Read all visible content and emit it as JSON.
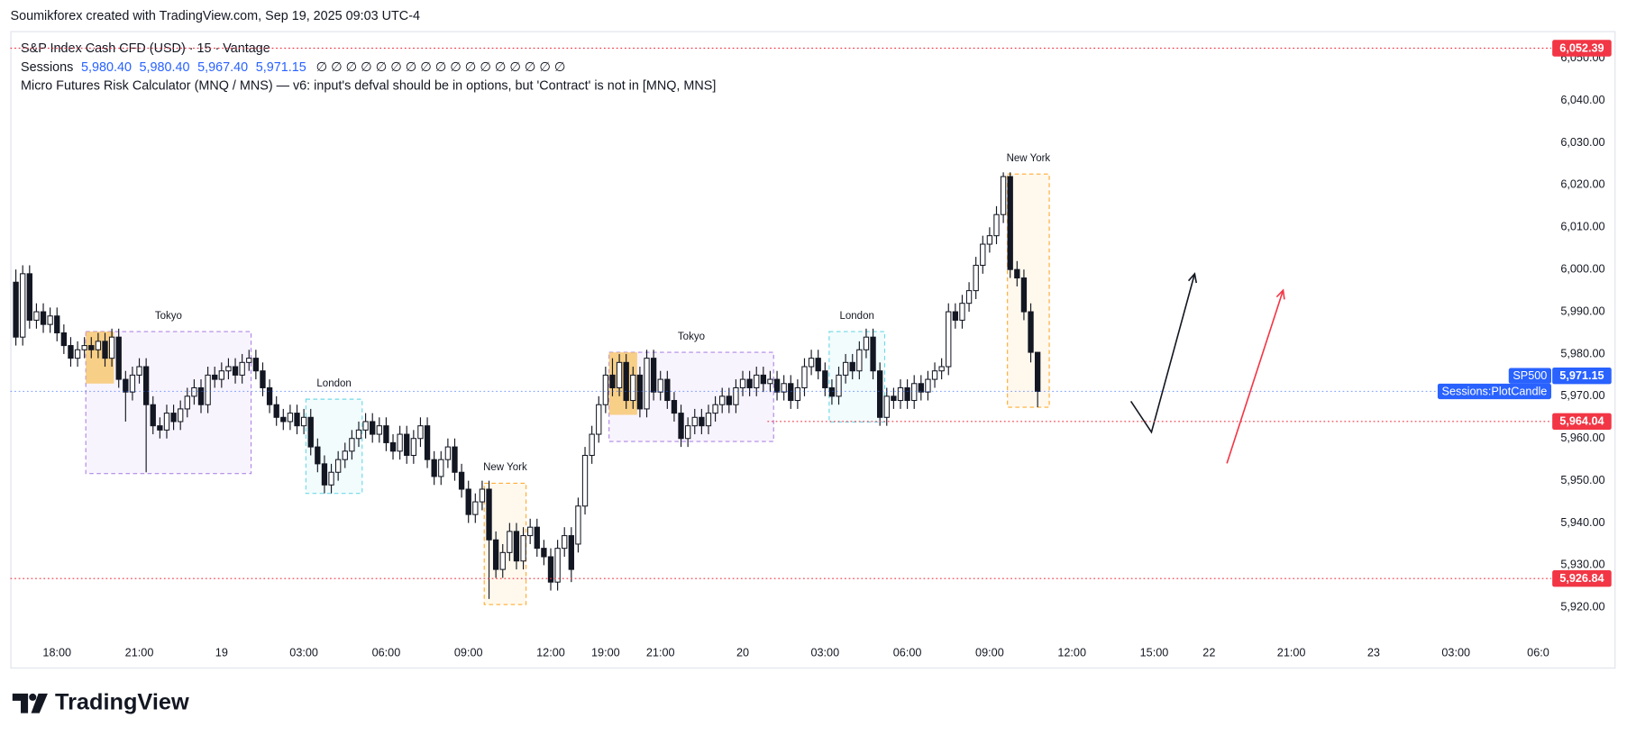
{
  "chart_data": {
    "type": "candlestick",
    "attribution": "Soumikforex created with TradingView.com, Sep 19, 2025 09:03 UTC-4",
    "title": "S&P Index Cash CFD (USD) · 15 · Vantage",
    "indicator": {
      "name": "Sessions",
      "values": [
        {
          "value": 5980.4,
          "label": "5,980.40"
        },
        {
          "value": 5980.4,
          "label": "5,980.40"
        },
        {
          "value": 5967.4,
          "label": "5,967.40"
        },
        {
          "value": 5971.15,
          "label": "5,971.15"
        }
      ],
      "color": "#2962ff",
      "symbols": "∅ ∅ ∅ ∅ ∅ ∅ ∅ ∅ ∅ ∅ ∅ ∅ ∅ ∅ ∅ ∅ ∅"
    },
    "error_message": "Micro Futures Risk Calculator (MNQ / MNS) — v6: input's defval should be in options, but 'Contract' is not in [MNQ, MNS]",
    "logo": "TradingView",
    "xlim": [
      -6.8,
      217.9
    ],
    "ylim": [
      5912.88,
      6056.44
    ],
    "grid": false,
    "xticks": [
      {
        "value": 0,
        "label": "18:00"
      },
      {
        "value": 12,
        "label": "21:00"
      },
      {
        "value": 24,
        "label": "19"
      },
      {
        "value": 36,
        "label": "03:00"
      },
      {
        "value": 48,
        "label": "06:00"
      },
      {
        "value": 60,
        "label": "09:00"
      },
      {
        "value": 72,
        "label": "12:00"
      },
      {
        "value": 80,
        "label": "19:00"
      },
      {
        "value": 88,
        "label": "21:00"
      },
      {
        "value": 100,
        "label": "20"
      },
      {
        "value": 112,
        "label": "03:00"
      },
      {
        "value": 124,
        "label": "06:00"
      },
      {
        "value": 136,
        "label": "09:00"
      },
      {
        "value": 148,
        "label": "12:00"
      },
      {
        "value": 160,
        "label": "15:00"
      },
      {
        "value": 168,
        "label": "22"
      },
      {
        "value": 180,
        "label": "21:00"
      },
      {
        "value": 192,
        "label": "23"
      },
      {
        "value": 204,
        "label": "03:00"
      },
      {
        "value": 216,
        "label": "06:0"
      }
    ],
    "yticks": [
      {
        "value": 5920,
        "label": "5,920.00"
      },
      {
        "value": 5930,
        "label": "5,930.00"
      },
      {
        "value": 5940,
        "label": "5,940.00"
      },
      {
        "value": 5950,
        "label": "5,950.00"
      },
      {
        "value": 5960,
        "label": "5,960.00"
      },
      {
        "value": 5970,
        "label": "5,970.00"
      },
      {
        "value": 5980,
        "label": "5,980.00"
      },
      {
        "value": 5990,
        "label": "5,990.00"
      },
      {
        "value": 6000,
        "label": "6,000.00"
      },
      {
        "value": 6010,
        "label": "6,010.00"
      },
      {
        "value": 6020,
        "label": "6,020.00"
      },
      {
        "value": 6030,
        "label": "6,030.00"
      },
      {
        "value": 6040,
        "label": "6,040.00"
      },
      {
        "value": 6050,
        "label": "6,050.00"
      }
    ],
    "up_color": "#ffffff",
    "down_color": "#131722",
    "wick_color": "#131722",
    "x": [
      -6,
      -5,
      -4,
      -3,
      -2,
      -1,
      0,
      1,
      2,
      3,
      4,
      5,
      6,
      7,
      8,
      9,
      10,
      11,
      12,
      13,
      14,
      15,
      16,
      17,
      18,
      19,
      20,
      21,
      22,
      23,
      24,
      25,
      26,
      27,
      28,
      29,
      30,
      31,
      32,
      33,
      34,
      35,
      36,
      37,
      38,
      39,
      40,
      41,
      42,
      43,
      44,
      45,
      46,
      47,
      48,
      49,
      50,
      51,
      52,
      53,
      54,
      55,
      56,
      57,
      58,
      59,
      60,
      61,
      62,
      63,
      64,
      65,
      66,
      67,
      68,
      69,
      70,
      71,
      72,
      73,
      74,
      75,
      76,
      77,
      78,
      79,
      80,
      81,
      82,
      83,
      84,
      85,
      86,
      87,
      88,
      89,
      90,
      91,
      92,
      93,
      94,
      95,
      96,
      97,
      98,
      99,
      100,
      101,
      102,
      103,
      104,
      105,
      106,
      107,
      108,
      109,
      110,
      111,
      112,
      113,
      114,
      115,
      116,
      117,
      118,
      119,
      120,
      121,
      122,
      123,
      124,
      125,
      126,
      127,
      128,
      129,
      130,
      131,
      132,
      133,
      134,
      135,
      136,
      137,
      138,
      139,
      140,
      141,
      142,
      143
    ],
    "open": [
      5997,
      5984,
      5999,
      5988,
      5990,
      5987,
      5989,
      5985,
      5982,
      5979,
      5981,
      5982,
      5981,
      5983,
      5979,
      5984,
      5974,
      5971,
      5975,
      5977,
      5968,
      5963,
      5962,
      5966,
      5964,
      5967,
      5970,
      5972,
      5968,
      5975,
      5974,
      5976,
      5977,
      5975,
      5978,
      5979,
      5976,
      5972,
      5968,
      5965,
      5964,
      5966,
      5963,
      5965,
      5958,
      5954,
      5949,
      5952,
      5955,
      5957,
      5960,
      5962,
      5964,
      5961,
      5963,
      5959,
      5957,
      5961,
      5956,
      5960,
      5963,
      5955,
      5951,
      5955,
      5958,
      5952,
      5948,
      5942,
      5945,
      5948,
      5936,
      5929,
      5933,
      5938,
      5931,
      5937,
      5939,
      5934,
      5932,
      5926,
      5934,
      5937,
      5935,
      5944,
      5956,
      5961,
      5968,
      5975,
      5972,
      5978,
      5969,
      5975,
      5967,
      5979,
      5971,
      5974,
      5969,
      5966,
      5960,
      5963,
      5965,
      5963,
      5966,
      5968,
      5970,
      5968,
      5972,
      5974,
      5972,
      5975,
      5973,
      5974,
      5971,
      5973,
      5969,
      5972,
      5977,
      5979,
      5976,
      5972,
      5970,
      5975,
      5978,
      5976,
      5981,
      5984,
      5976,
      5965,
      5970,
      5969,
      5972,
      5969,
      5973,
      5971,
      5974,
      5976,
      5977,
      5990,
      5988,
      5992,
      5995,
      6001,
      6006,
      6008,
      6013,
      6022,
      6000,
      5998,
      5990,
      5980.4
    ],
    "high": [
      6000,
      6001,
      6001,
      5992,
      5992,
      5991,
      5991,
      5987,
      5984,
      5983,
      5984,
      5984,
      5985,
      5985,
      5986,
      5986,
      5976,
      5977,
      5979,
      5979,
      5970,
      5965,
      5968,
      5968,
      5969,
      5972,
      5974,
      5974,
      5977,
      5977,
      5978,
      5979,
      5979,
      5980,
      5981,
      5981,
      5978,
      5974,
      5970,
      5967,
      5968,
      5968,
      5967,
      5967,
      5960,
      5956,
      5954,
      5957,
      5959,
      5962,
      5964,
      5966,
      5966,
      5965,
      5965,
      5961,
      5963,
      5963,
      5962,
      5965,
      5965,
      5957,
      5957,
      5960,
      5960,
      5954,
      5950,
      5947,
      5950,
      5950,
      5938,
      5935,
      5940,
      5940,
      5939,
      5941,
      5941,
      5936,
      5934,
      5936,
      5939,
      5939,
      5946,
      5958,
      5963,
      5970,
      5977,
      5979,
      5980,
      5980,
      5977,
      5977,
      5981,
      5981,
      5976,
      5976,
      5971,
      5968,
      5965,
      5967,
      5967,
      5968,
      5970,
      5972,
      5972,
      5974,
      5976,
      5976,
      5977,
      5977,
      5976,
      5976,
      5975,
      5975,
      5974,
      5979,
      5981,
      5981,
      5978,
      5974,
      5977,
      5980,
      5980,
      5983,
      5986,
      5986,
      5978,
      5972,
      5972,
      5974,
      5974,
      5975,
      5975,
      5976,
      5978,
      5979,
      5992,
      5992,
      5994,
      5997,
      6003,
      6008,
      6010,
      6015,
      6023,
      6023,
      6002,
      6000,
      5992,
      5980.4
    ],
    "low": [
      5982,
      5982,
      5986,
      5986,
      5985,
      5985,
      5983,
      5980,
      5977,
      5977,
      5979,
      5979,
      5979,
      5977,
      5977,
      5972,
      5964,
      5969,
      5973,
      5952,
      5961,
      5960,
      5960,
      5962,
      5962,
      5965,
      5968,
      5966,
      5966,
      5972,
      5972,
      5974,
      5973,
      5973,
      5976,
      5974,
      5970,
      5966,
      5963,
      5962,
      5962,
      5961,
      5961,
      5956,
      5952,
      5947,
      5947,
      5950,
      5953,
      5955,
      5958,
      5960,
      5959,
      5959,
      5957,
      5955,
      5955,
      5954,
      5954,
      5958,
      5953,
      5949,
      5949,
      5953,
      5950,
      5946,
      5940,
      5940,
      5943,
      5922,
      5927,
      5927,
      5931,
      5929,
      5929,
      5935,
      5932,
      5930,
      5924,
      5924,
      5932,
      5926,
      5933,
      5942,
      5954,
      5959,
      5966,
      5970,
      5970,
      5967,
      5967,
      5965,
      5965,
      5969,
      5969,
      5967,
      5964,
      5958,
      5958,
      5961,
      5961,
      5961,
      5964,
      5966,
      5966,
      5966,
      5970,
      5970,
      5970,
      5971,
      5971,
      5969,
      5969,
      5967,
      5967,
      5970,
      5975,
      5974,
      5970,
      5968,
      5968,
      5973,
      5974,
      5974,
      5979,
      5974,
      5963,
      5963,
      5967,
      5967,
      5967,
      5967,
      5969,
      5969,
      5972,
      5974,
      5975,
      5986,
      5986,
      5990,
      5993,
      5999,
      6004,
      6006,
      6011,
      5998,
      5996,
      5988,
      5978,
      5967.4
    ],
    "close": [
      5984,
      5999,
      5988,
      5990,
      5987,
      5989,
      5985,
      5982,
      5979,
      5981,
      5982,
      5981,
      5983,
      5979,
      5984,
      5974,
      5971,
      5975,
      5977,
      5968,
      5963,
      5962,
      5966,
      5964,
      5967,
      5970,
      5972,
      5968,
      5975,
      5974,
      5976,
      5977,
      5975,
      5978,
      5979,
      5976,
      5972,
      5968,
      5965,
      5964,
      5966,
      5963,
      5965,
      5958,
      5954,
      5949,
      5952,
      5955,
      5957,
      5960,
      5962,
      5964,
      5961,
      5963,
      5959,
      5957,
      5961,
      5956,
      5960,
      5963,
      5955,
      5951,
      5955,
      5958,
      5952,
      5948,
      5942,
      5945,
      5948,
      5936,
      5929,
      5933,
      5938,
      5931,
      5937,
      5939,
      5934,
      5932,
      5926,
      5934,
      5937,
      5929,
      5944,
      5956,
      5961,
      5968,
      5975,
      5972,
      5978,
      5969,
      5975,
      5967,
      5979,
      5971,
      5974,
      5969,
      5966,
      5960,
      5963,
      5965,
      5963,
      5966,
      5968,
      5970,
      5968,
      5972,
      5974,
      5972,
      5975,
      5973,
      5974,
      5971,
      5973,
      5969,
      5972,
      5977,
      5979,
      5976,
      5972,
      5970,
      5975,
      5978,
      5976,
      5981,
      5984,
      5976,
      5965,
      5970,
      5969,
      5972,
      5969,
      5973,
      5971,
      5974,
      5976,
      5977,
      5990,
      5988,
      5992,
      5995,
      6001,
      6006,
      6008,
      6013,
      6022,
      6000,
      5998,
      5990,
      5980.4,
      5971.15
    ],
    "sessions": [
      {
        "name": "Tokyo",
        "color": "#9c6ade",
        "x": [
          4.2,
          28.3
        ],
        "range": [
          5951.7,
          5985.3
        ],
        "highlight": {
          "color": "#f7c35f",
          "x": [
            4.2,
            8.3
          ],
          "range": [
            5973,
            5985.3
          ]
        }
      },
      {
        "name": "London",
        "color": "#4dd0e1",
        "x": [
          36.3,
          44.5
        ],
        "range": [
          5947,
          5969.3
        ]
      },
      {
        "name": "New York",
        "color": "#ff9800",
        "x": [
          62.3,
          68.4
        ],
        "range": [
          5920.7,
          5949.4
        ]
      },
      {
        "name": "Tokyo",
        "color": "#9c6ade",
        "x": [
          80.5,
          104.5
        ],
        "range": [
          5959.3,
          5980.4
        ],
        "highlight": {
          "color": "#f7c35f",
          "x": [
            80.5,
            84.6
          ],
          "range": [
            5965.6,
            5980.4
          ]
        }
      },
      {
        "name": "London",
        "color": "#4dd0e1",
        "x": [
          112.6,
          120.7
        ],
        "range": [
          5963.9,
          5985.3
        ]
      },
      {
        "name": "New York",
        "color": "#ff9800",
        "x": [
          138.6,
          144.7
        ],
        "range": [
          5967.4,
          6022.6
        ]
      }
    ],
    "levels": [
      {
        "value": 6052.39,
        "label": "6,052.39",
        "color": "#f23645"
      },
      {
        "value": 5964.04,
        "label": "5,964.04",
        "color": "#f23645",
        "x_start": 103.6
      },
      {
        "value": 5926.84,
        "label": "5,926.84",
        "color": "#f23645"
      },
      {
        "value": 5971.15,
        "label": "5,971.15",
        "color": "#2962ff",
        "tags": [
          "SP500",
          "Sessions:PlotCandle"
        ]
      }
    ],
    "drawings": [
      {
        "color": "#131722",
        "x": [
          156.6,
          159.6,
          165.9
        ],
        "y": [
          5968.8,
          5961.5,
          5999
        ]
      },
      {
        "color": "#f23645",
        "x": [
          170.6,
          178.8
        ],
        "y": [
          5954.1,
          5995.1
        ]
      }
    ]
  }
}
